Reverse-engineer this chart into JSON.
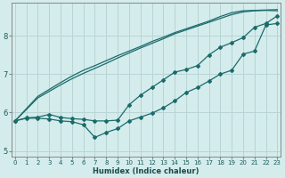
{
  "title": "",
  "xlabel": "Humidex (Indice chaleur)",
  "ylabel": "",
  "bg_color": "#d4ecec",
  "line_color": "#1a6b6b",
  "grid_color": "#b8d4d4",
  "x_ticks": [
    0,
    1,
    2,
    3,
    4,
    5,
    6,
    7,
    8,
    9,
    10,
    11,
    12,
    13,
    14,
    15,
    16,
    17,
    18,
    19,
    20,
    21,
    22,
    23
  ],
  "y_ticks": [
    5,
    6,
    7,
    8
  ],
  "xlim": [
    -0.3,
    23.3
  ],
  "ylim": [
    4.85,
    8.85
  ],
  "line1": [
    5.78,
    5.85,
    5.85,
    5.83,
    5.78,
    5.76,
    5.68,
    5.35,
    5.48,
    5.58,
    5.78,
    5.88,
    5.98,
    6.12,
    6.3,
    6.52,
    6.65,
    6.82,
    7.0,
    7.1,
    7.52,
    7.6,
    8.28,
    8.32
  ],
  "line2": [
    5.78,
    5.86,
    5.88,
    5.95,
    5.87,
    5.84,
    5.82,
    5.78,
    5.78,
    5.8,
    6.2,
    6.45,
    6.65,
    6.85,
    7.05,
    7.12,
    7.22,
    7.5,
    7.7,
    7.82,
    7.95,
    8.22,
    8.32,
    8.52
  ],
  "line3_straight_low": [
    5.78,
    6.08,
    6.38,
    6.55,
    6.72,
    6.88,
    7.02,
    7.15,
    7.28,
    7.42,
    7.55,
    7.68,
    7.8,
    7.92,
    8.05,
    8.15,
    8.25,
    8.35,
    8.45,
    8.55,
    8.62,
    8.65,
    8.66,
    8.65
  ],
  "line4_straight_high": [
    5.78,
    6.1,
    6.42,
    6.6,
    6.78,
    6.95,
    7.1,
    7.22,
    7.35,
    7.48,
    7.6,
    7.72,
    7.85,
    7.96,
    8.08,
    8.18,
    8.28,
    8.38,
    8.5,
    8.6,
    8.65,
    8.66,
    8.67,
    8.68
  ],
  "x_values": [
    0,
    1,
    2,
    3,
    4,
    5,
    6,
    7,
    8,
    9,
    10,
    11,
    12,
    13,
    14,
    15,
    16,
    17,
    18,
    19,
    20,
    21,
    22,
    23
  ]
}
